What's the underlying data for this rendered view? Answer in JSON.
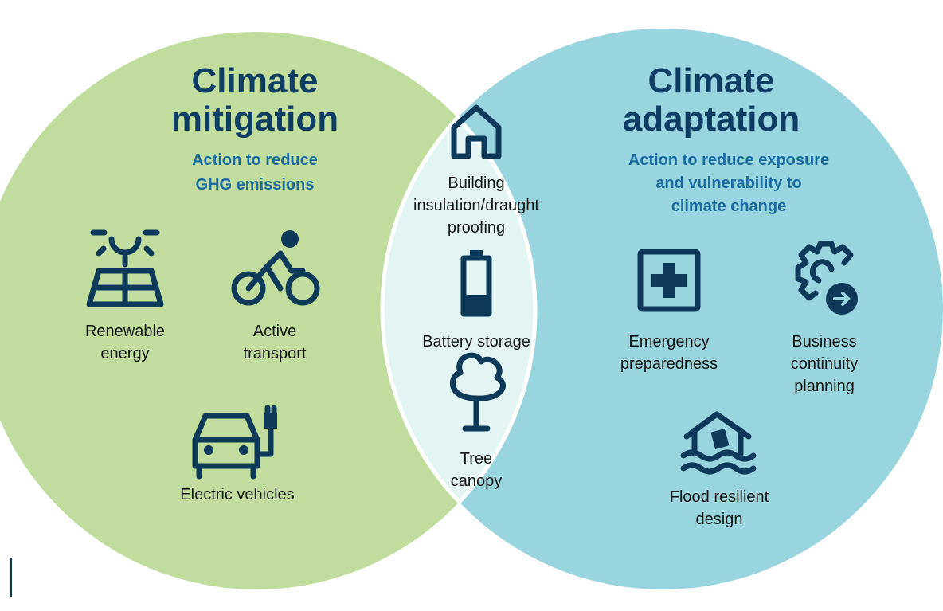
{
  "mitigation": {
    "title": [
      "Climate",
      "mitigation"
    ],
    "subtitle": [
      "Action to reduce",
      "GHG emissions"
    ],
    "items": [
      {
        "label": [
          "Renewable",
          "energy"
        ]
      },
      {
        "label": [
          "Active",
          "transport"
        ]
      },
      {
        "label": [
          "Electric vehicles"
        ]
      }
    ]
  },
  "overlap": {
    "items": [
      {
        "label": [
          "Building",
          "insulation/draught",
          "proofing"
        ]
      },
      {
        "label": [
          "Battery storage"
        ]
      },
      {
        "label": [
          "Tree",
          "canopy"
        ]
      }
    ]
  },
  "adaptation": {
    "title": [
      "Climate",
      "adaptation"
    ],
    "subtitle": [
      "Action to reduce exposure",
      "and vulnerability to",
      "climate change"
    ],
    "items": [
      {
        "label": [
          "Emergency",
          "preparedness"
        ]
      },
      {
        "label": [
          "Business",
          "continuity",
          "planning"
        ]
      },
      {
        "label": [
          "Flood resilient",
          "design"
        ]
      }
    ]
  }
}
